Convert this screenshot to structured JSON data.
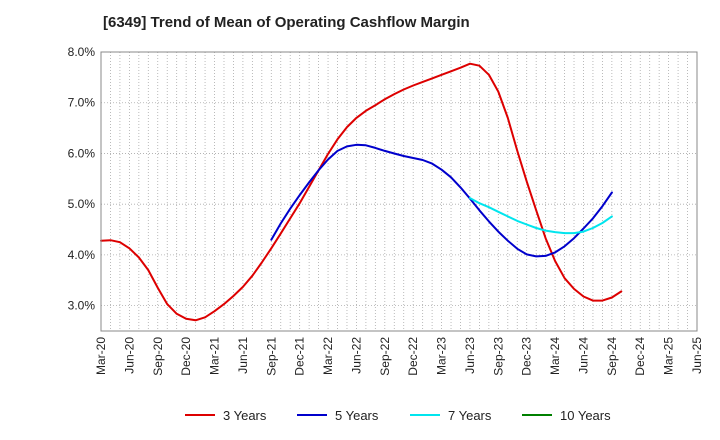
{
  "chart_data": {
    "type": "line",
    "title": "[6349]  Trend of Mean of Operating Cashflow Margin",
    "xlabel": "",
    "ylabel": "",
    "ylim": [
      2.5,
      8.0
    ],
    "yticks": [
      3.0,
      4.0,
      5.0,
      6.0,
      7.0,
      8.0
    ],
    "ytick_labels": [
      "3.0%",
      "4.0%",
      "5.0%",
      "6.0%",
      "7.0%",
      "8.0%"
    ],
    "x_start": "Mar-20",
    "x_tick_labels": [
      "Mar-20",
      "Jun-20",
      "Sep-20",
      "Dec-20",
      "Mar-21",
      "Jun-21",
      "Sep-21",
      "Dec-21",
      "Mar-22",
      "Jun-22",
      "Sep-22",
      "Dec-22",
      "Mar-23",
      "Jun-23",
      "Sep-23",
      "Dec-23",
      "Mar-24",
      "Jun-24",
      "Sep-24",
      "Dec-24",
      "Mar-25",
      "Jun-25"
    ],
    "grid": true,
    "legend_position": "bottom",
    "series": [
      {
        "name": "3 Years",
        "color": "#dd0000",
        "start_index": 0,
        "values": [
          4.28,
          4.29,
          4.25,
          4.13,
          3.95,
          3.7,
          3.35,
          3.03,
          2.84,
          2.74,
          2.71,
          2.77,
          2.89,
          3.03,
          3.19,
          3.37,
          3.59,
          3.85,
          4.13,
          4.42,
          4.72,
          5.02,
          5.34,
          5.67,
          5.99,
          6.28,
          6.52,
          6.7,
          6.84,
          6.95,
          7.07,
          7.17,
          7.26,
          7.34,
          7.41,
          7.48,
          7.55,
          7.62,
          7.69,
          7.77,
          7.73,
          7.55,
          7.22,
          6.7,
          6.05,
          5.45,
          4.88,
          4.33,
          3.88,
          3.54,
          3.33,
          3.18,
          3.1,
          3.1,
          3.16,
          3.28
        ]
      },
      {
        "name": "5 Years",
        "color": "#0000cc",
        "start_index": 18,
        "values": [
          4.3,
          4.62,
          4.91,
          5.18,
          5.43,
          5.67,
          5.88,
          6.05,
          6.14,
          6.17,
          6.16,
          6.11,
          6.05,
          6.0,
          5.95,
          5.91,
          5.87,
          5.8,
          5.68,
          5.53,
          5.33,
          5.11,
          4.88,
          4.66,
          4.46,
          4.28,
          4.12,
          4.01,
          3.97,
          3.98,
          4.05,
          4.17,
          4.33,
          4.52,
          4.72,
          4.96,
          5.23
        ]
      },
      {
        "name": "7 Years",
        "color": "#00e5ee",
        "start_index": 39,
        "values": [
          5.12,
          5.02,
          4.94,
          4.85,
          4.76,
          4.67,
          4.6,
          4.53,
          4.48,
          4.45,
          4.43,
          4.43,
          4.46,
          4.53,
          4.63,
          4.76
        ]
      },
      {
        "name": "10 Years",
        "color": "#008000",
        "start_index": 0,
        "values": []
      }
    ]
  }
}
